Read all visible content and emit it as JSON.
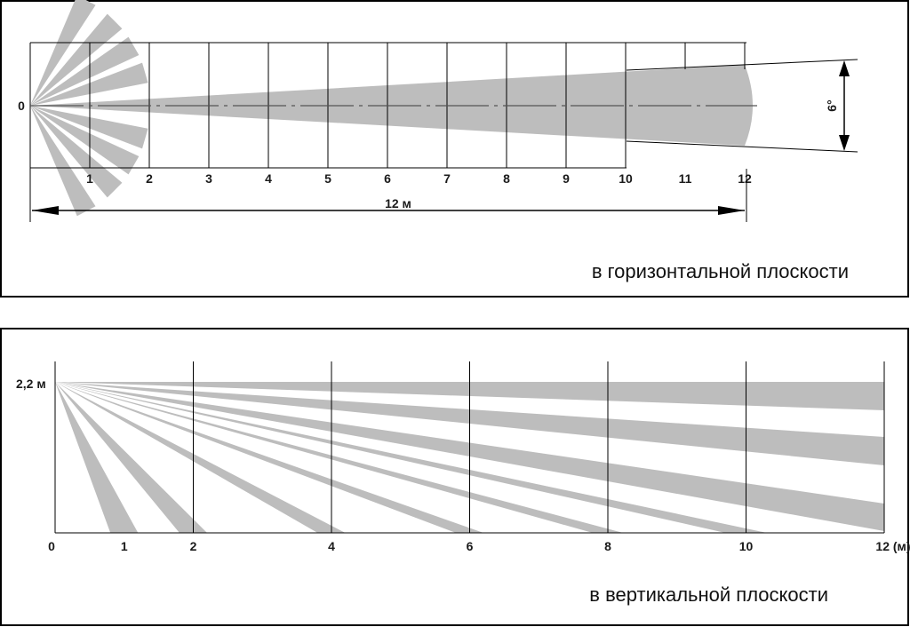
{
  "colors": {
    "beam": "#bdbdbd",
    "line": "#000000",
    "panel_border": "#000000",
    "background": "#ffffff"
  },
  "horizontal": {
    "caption": "в горизонтальной плоскости",
    "origin_label": "0",
    "x_ticks": [
      "1",
      "2",
      "3",
      "4",
      "5",
      "6",
      "7",
      "8",
      "9",
      "10",
      "11",
      "12"
    ],
    "range_label": "12 м",
    "angle_label": "6°"
  },
  "vertical": {
    "caption": "в вертикальной плоскости",
    "height_label": "2,2 м",
    "x_ticks": [
      "0",
      "1",
      "2",
      "4",
      "6",
      "8",
      "10",
      "12 (м)"
    ]
  }
}
